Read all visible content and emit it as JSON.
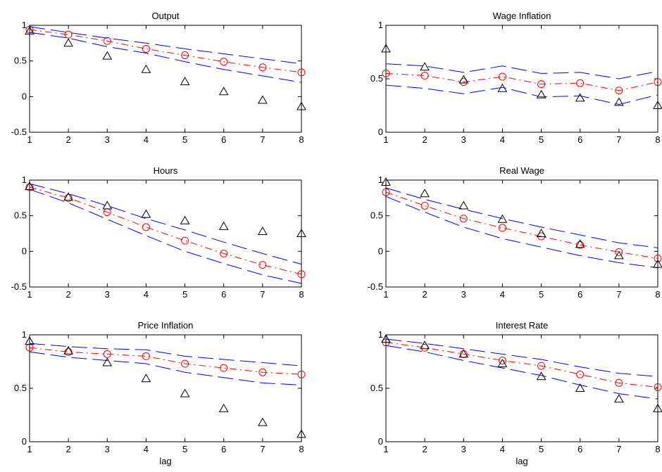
{
  "chart_data": [
    {
      "type": "line",
      "title": "Output",
      "xlabel": "",
      "ylim": [
        -0.5,
        1
      ],
      "yticks": [
        "-0.5",
        "0",
        "0.5",
        "1"
      ],
      "xticks": [
        "1",
        "2",
        "3",
        "4",
        "5",
        "6",
        "7",
        "8"
      ],
      "x": [
        1,
        2,
        3,
        4,
        5,
        6,
        7,
        8
      ],
      "series": [
        {
          "marker": "circle",
          "color": "#ff0000",
          "dash": "dash-dot",
          "values": [
            0.94,
            0.87,
            0.78,
            0.67,
            0.58,
            0.49,
            0.41,
            0.34
          ]
        },
        {
          "marker": "none",
          "color": "#0000ff",
          "dash": "long-dash",
          "values": [
            0.98,
            0.9,
            0.82,
            0.75,
            0.67,
            0.6,
            0.53,
            0.46
          ]
        },
        {
          "marker": "none",
          "color": "#0000ff",
          "dash": "long-dash",
          "values": [
            0.9,
            0.82,
            0.7,
            0.61,
            0.49,
            0.38,
            0.29,
            0.2
          ]
        },
        {
          "marker": "triangle",
          "color": "#000000",
          "dash": "none",
          "values": [
            0.92,
            0.75,
            0.57,
            0.38,
            0.21,
            0.07,
            -0.05,
            -0.14
          ]
        }
      ]
    },
    {
      "type": "line",
      "title": "Wage Inflation",
      "xlabel": "",
      "ylim": [
        0,
        1
      ],
      "yticks": [
        "0",
        "0.5",
        "1"
      ],
      "xticks": [
        "1",
        "2",
        "3",
        "4",
        "5",
        "6",
        "7",
        "8"
      ],
      "x": [
        1,
        2,
        3,
        4,
        5,
        6,
        7,
        8
      ],
      "series": [
        {
          "marker": "circle",
          "color": "#ff0000",
          "dash": "dash-dot",
          "values": [
            0.55,
            0.53,
            0.47,
            0.52,
            0.45,
            0.46,
            0.39,
            0.47
          ]
        },
        {
          "marker": "none",
          "color": "#0000ff",
          "dash": "long-dash",
          "values": [
            0.64,
            0.62,
            0.56,
            0.62,
            0.55,
            0.56,
            0.5,
            0.57
          ]
        },
        {
          "marker": "none",
          "color": "#0000ff",
          "dash": "long-dash",
          "values": [
            0.44,
            0.41,
            0.36,
            0.42,
            0.33,
            0.34,
            0.26,
            0.35
          ]
        },
        {
          "marker": "triangle",
          "color": "#000000",
          "dash": "none",
          "values": [
            0.78,
            0.61,
            0.49,
            0.41,
            0.35,
            0.32,
            0.28,
            0.25
          ]
        }
      ]
    },
    {
      "type": "line",
      "title": "Hours",
      "xlabel": "",
      "ylim": [
        -0.5,
        1
      ],
      "yticks": [
        "-0.5",
        "0",
        "0.5",
        "1"
      ],
      "xticks": [
        "1",
        "2",
        "3",
        "4",
        "5",
        "6",
        "7",
        "8"
      ],
      "x": [
        1,
        2,
        3,
        4,
        5,
        6,
        7,
        8
      ],
      "series": [
        {
          "marker": "circle",
          "color": "#ff0000",
          "dash": "dash-dot",
          "values": [
            0.9,
            0.75,
            0.55,
            0.34,
            0.15,
            -0.03,
            -0.19,
            -0.32
          ]
        },
        {
          "marker": "none",
          "color": "#0000ff",
          "dash": "long-dash",
          "values": [
            0.95,
            0.81,
            0.64,
            0.46,
            0.3,
            0.13,
            -0.03,
            -0.18
          ]
        },
        {
          "marker": "none",
          "color": "#0000ff",
          "dash": "long-dash",
          "values": [
            0.87,
            0.68,
            0.45,
            0.22,
            0.0,
            -0.17,
            -0.33,
            -0.45
          ]
        },
        {
          "marker": "triangle",
          "color": "#000000",
          "dash": "none",
          "values": [
            0.91,
            0.76,
            0.64,
            0.52,
            0.43,
            0.35,
            0.28,
            0.25
          ]
        }
      ]
    },
    {
      "type": "line",
      "title": "Real Wage",
      "xlabel": "",
      "ylim": [
        -0.5,
        1
      ],
      "yticks": [
        "-0.5",
        "0",
        "0.5",
        "1"
      ],
      "xticks": [
        "1",
        "2",
        "3",
        "4",
        "5",
        "6",
        "7",
        "8"
      ],
      "x": [
        1,
        2,
        3,
        4,
        5,
        6,
        7,
        8
      ],
      "series": [
        {
          "marker": "circle",
          "color": "#ff0000",
          "dash": "dash-dot",
          "values": [
            0.83,
            0.64,
            0.46,
            0.33,
            0.21,
            0.09,
            -0.01,
            -0.1
          ]
        },
        {
          "marker": "none",
          "color": "#0000ff",
          "dash": "long-dash",
          "values": [
            0.89,
            0.73,
            0.59,
            0.46,
            0.34,
            0.23,
            0.12,
            0.05
          ]
        },
        {
          "marker": "none",
          "color": "#0000ff",
          "dash": "long-dash",
          "values": [
            0.77,
            0.55,
            0.34,
            0.18,
            0.06,
            -0.06,
            -0.16,
            -0.23
          ]
        },
        {
          "marker": "triangle",
          "color": "#000000",
          "dash": "none",
          "values": [
            0.97,
            0.81,
            0.64,
            0.45,
            0.25,
            0.1,
            -0.06,
            -0.18
          ]
        }
      ]
    },
    {
      "type": "line",
      "title": "Price Inflation",
      "xlabel": "lag",
      "ylim": [
        0,
        1
      ],
      "yticks": [
        "0",
        "0.5",
        "1"
      ],
      "xticks": [
        "1",
        "2",
        "3",
        "4",
        "5",
        "6",
        "7",
        "8"
      ],
      "x": [
        1,
        2,
        3,
        4,
        5,
        6,
        7,
        8
      ],
      "series": [
        {
          "marker": "circle",
          "color": "#ff0000",
          "dash": "dash-dot",
          "values": [
            0.88,
            0.84,
            0.82,
            0.8,
            0.73,
            0.69,
            0.65,
            0.63
          ]
        },
        {
          "marker": "none",
          "color": "#0000ff",
          "dash": "long-dash",
          "values": [
            0.92,
            0.89,
            0.87,
            0.86,
            0.8,
            0.77,
            0.74,
            0.71
          ]
        },
        {
          "marker": "none",
          "color": "#0000ff",
          "dash": "long-dash",
          "values": [
            0.84,
            0.79,
            0.76,
            0.73,
            0.65,
            0.6,
            0.55,
            0.53
          ]
        },
        {
          "marker": "triangle",
          "color": "#000000",
          "dash": "none",
          "values": [
            0.94,
            0.85,
            0.74,
            0.59,
            0.45,
            0.31,
            0.18,
            0.07
          ]
        }
      ]
    },
    {
      "type": "line",
      "title": "Interest Rate",
      "xlabel": "lag",
      "ylim": [
        0,
        1
      ],
      "yticks": [
        "0",
        "0.5",
        "1"
      ],
      "xticks": [
        "1",
        "2",
        "3",
        "4",
        "5",
        "6",
        "7",
        "8"
      ],
      "x": [
        1,
        2,
        3,
        4,
        5,
        6,
        7,
        8
      ],
      "series": [
        {
          "marker": "circle",
          "color": "#ff0000",
          "dash": "dash-dot",
          "values": [
            0.93,
            0.88,
            0.82,
            0.76,
            0.71,
            0.63,
            0.55,
            0.51
          ]
        },
        {
          "marker": "none",
          "color": "#0000ff",
          "dash": "long-dash",
          "values": [
            0.96,
            0.92,
            0.87,
            0.82,
            0.77,
            0.7,
            0.64,
            0.61
          ]
        },
        {
          "marker": "none",
          "color": "#0000ff",
          "dash": "long-dash",
          "values": [
            0.9,
            0.84,
            0.76,
            0.69,
            0.62,
            0.53,
            0.45,
            0.4
          ]
        },
        {
          "marker": "triangle",
          "color": "#000000",
          "dash": "none",
          "values": [
            0.96,
            0.9,
            0.82,
            0.73,
            0.61,
            0.5,
            0.4,
            0.31
          ]
        }
      ]
    }
  ]
}
